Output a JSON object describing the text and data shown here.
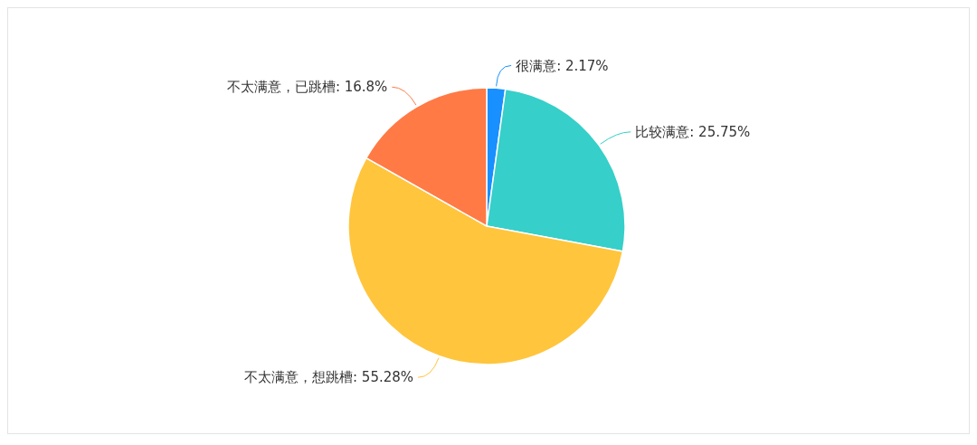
{
  "chart_data": {
    "type": "pie",
    "categories": [
      "很满意",
      "比较满意",
      "不太满意，想跳槽",
      "不太满意，已跳槽"
    ],
    "values": [
      2.17,
      25.75,
      55.28,
      16.8
    ],
    "colors": [
      "#1890ff",
      "#36cfc9",
      "#ffc53d",
      "#ff7a45"
    ],
    "value_labels": [
      "2.17%",
      "25.75%",
      "55.28%",
      "16.8%"
    ],
    "legend": false
  }
}
